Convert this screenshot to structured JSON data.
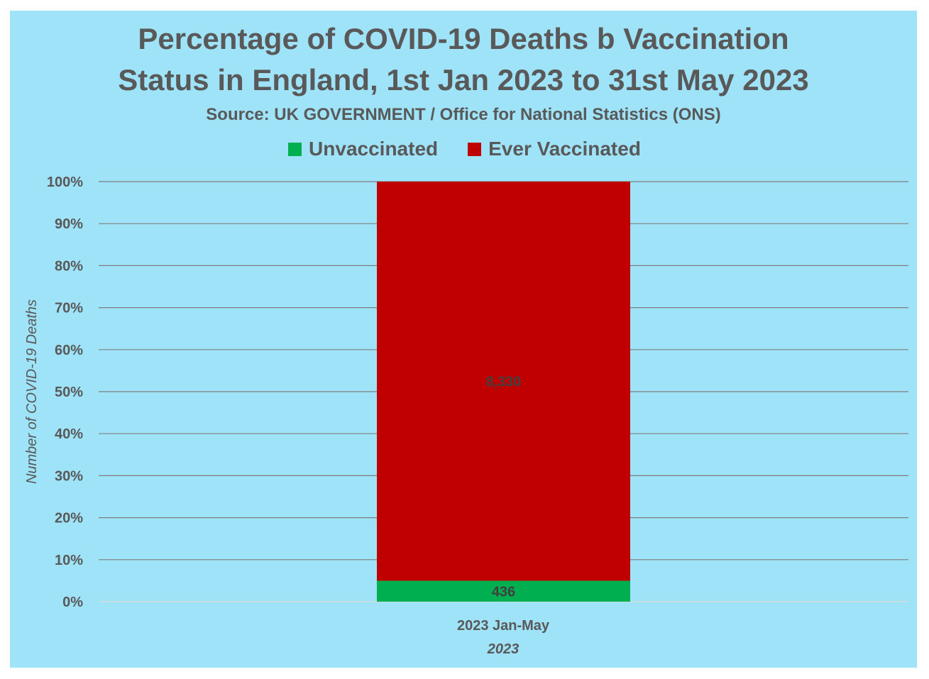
{
  "colors": {
    "background": "#9fe3f9",
    "unvaccinated": "#00b050",
    "ever_vaccinated": "#c00000",
    "text": "#595959",
    "gridline": "#7f7f7f"
  },
  "chart_data": {
    "type": "bar",
    "stacked": "percent",
    "title_line1": "Percentage of COVID-19 Deaths b Vaccination",
    "title_line2": "Status in England, 1st Jan 2023 to 31st May 2023",
    "subtitle": "Source: UK GOVERNMENT / Office for National Statistics (ONS)",
    "ylabel": "Number of COVID-19 Deaths",
    "xlabel": "2023",
    "categories": [
      "2023 Jan-May"
    ],
    "series": [
      {
        "name": "Unvaccinated",
        "values": [
          436
        ],
        "label": "436",
        "color": "#00b050"
      },
      {
        "name": "Ever Vaccinated",
        "values": [
          8330
        ],
        "label": "8,330",
        "color": "#c00000"
      }
    ],
    "ylim": [
      0,
      100
    ],
    "yticks": [
      "0%",
      "10%",
      "20%",
      "30%",
      "40%",
      "50%",
      "60%",
      "70%",
      "80%",
      "90%",
      "100%"
    ],
    "legend": "top",
    "grid": true
  }
}
